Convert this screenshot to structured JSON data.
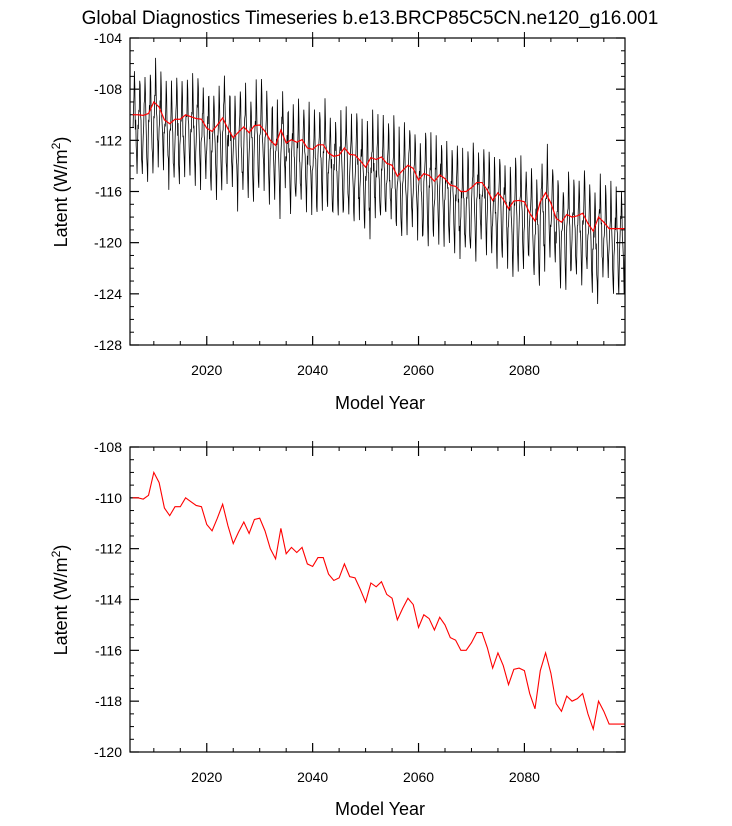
{
  "title": "Global Diagnostics Timeseries b.e13.BRCP85C5CN.ne120_g16.001",
  "colors": {
    "monthly": "#000000",
    "annual": "#ff0000",
    "frame": "#000000"
  },
  "chart_data": [
    {
      "type": "line",
      "panel": "top",
      "xlabel": "Model Year",
      "ylabel_main": "Latent (W/m",
      "ylabel_sup": "2",
      "ylabel_close": ")",
      "xlim": [
        2005.5,
        2099
      ],
      "ylim": [
        -128,
        -104
      ],
      "x_ticks": [
        2020,
        2040,
        2060,
        2080
      ],
      "x_tick_labels": [
        "2020",
        "2040",
        "2060",
        "2080"
      ],
      "y_ticks": [
        -104,
        -108,
        -112,
        -116,
        -120,
        -124,
        -128
      ],
      "y_tick_labels": [
        "-104",
        "-108",
        "-112",
        "-116",
        "-120",
        "-124",
        "-128"
      ],
      "series": [
        {
          "name": "monthly",
          "color": "#000000",
          "start_year": 2006,
          "step": 0.08333,
          "monthly_climatology": [
            -1.0,
            -0.5,
            0.2,
            0.5,
            2.5,
            1.5,
            -0.5,
            -0.8,
            -2.2,
            -3.0,
            -4.0,
            -2.0
          ],
          "annual_base": "series.1",
          "amplitude_scale": 1.25
        },
        {
          "name": "annual",
          "color": "#ff0000",
          "ref": "annual_values"
        }
      ]
    },
    {
      "type": "line",
      "panel": "bottom",
      "xlabel": "Model Year",
      "ylabel_main": "Latent (W/m",
      "ylabel_sup": "2",
      "ylabel_close": ")",
      "xlim": [
        2005.5,
        2099
      ],
      "ylim": [
        -120,
        -108
      ],
      "x_ticks": [
        2020,
        2040,
        2060,
        2080
      ],
      "x_tick_labels": [
        "2020",
        "2040",
        "2060",
        "2080"
      ],
      "y_ticks": [
        -108,
        -110,
        -112,
        -114,
        -116,
        -118,
        -120
      ],
      "y_tick_labels": [
        "-108",
        "-110",
        "-112",
        "-114",
        "-116",
        "-118",
        "-120"
      ],
      "series": [
        {
          "name": "annual",
          "color": "#ff0000",
          "ref": "annual_values"
        }
      ]
    }
  ],
  "annual_years": [
    2006,
    2007,
    2008,
    2009,
    2010,
    2011,
    2012,
    2013,
    2014,
    2015,
    2016,
    2017,
    2018,
    2019,
    2020,
    2021,
    2022,
    2023,
    2024,
    2025,
    2026,
    2027,
    2028,
    2029,
    2030,
    2031,
    2032,
    2033,
    2034,
    2035,
    2036,
    2037,
    2038,
    2039,
    2040,
    2041,
    2042,
    2043,
    2044,
    2045,
    2046,
    2047,
    2048,
    2049,
    2050,
    2051,
    2052,
    2053,
    2054,
    2055,
    2056,
    2057,
    2058,
    2059,
    2060,
    2061,
    2062,
    2063,
    2064,
    2065,
    2066,
    2067,
    2068,
    2069,
    2070,
    2071,
    2072,
    2073,
    2074,
    2075,
    2076,
    2077,
    2078,
    2079,
    2080,
    2081,
    2082,
    2083,
    2084,
    2085,
    2086,
    2087,
    2088,
    2089,
    2090,
    2091,
    2092,
    2093,
    2094,
    2095,
    2096,
    2097,
    2098,
    2099
  ],
  "annual_values": [
    -110.0,
    -110.0,
    -110.05,
    -109.9,
    -109.0,
    -109.4,
    -110.4,
    -110.7,
    -110.35,
    -110.35,
    -110.0,
    -110.15,
    -110.3,
    -110.35,
    -111.05,
    -111.3,
    -110.8,
    -110.25,
    -111.1,
    -111.8,
    -111.35,
    -110.95,
    -111.4,
    -110.85,
    -110.8,
    -111.3,
    -112.0,
    -112.4,
    -111.2,
    -112.2,
    -111.95,
    -112.15,
    -111.95,
    -112.6,
    -112.7,
    -112.35,
    -112.35,
    -113.0,
    -113.25,
    -113.15,
    -112.6,
    -113.1,
    -113.15,
    -113.6,
    -114.1,
    -113.35,
    -113.5,
    -113.3,
    -113.8,
    -113.95,
    -114.8,
    -114.35,
    -113.95,
    -114.2,
    -115.1,
    -114.6,
    -114.75,
    -115.2,
    -114.7,
    -115.0,
    -115.5,
    -115.6,
    -116.0,
    -116.0,
    -115.7,
    -115.3,
    -115.3,
    -115.9,
    -116.7,
    -116.1,
    -116.6,
    -117.35,
    -116.75,
    -116.7,
    -116.8,
    -117.7,
    -118.3,
    -116.8,
    -116.1,
    -116.9,
    -118.1,
    -118.4,
    -117.8,
    -118.0,
    -117.9,
    -117.7,
    -118.5,
    -119.1,
    -118.0,
    -118.4,
    -118.9,
    -118.9,
    -118.9,
    -118.9
  ]
}
